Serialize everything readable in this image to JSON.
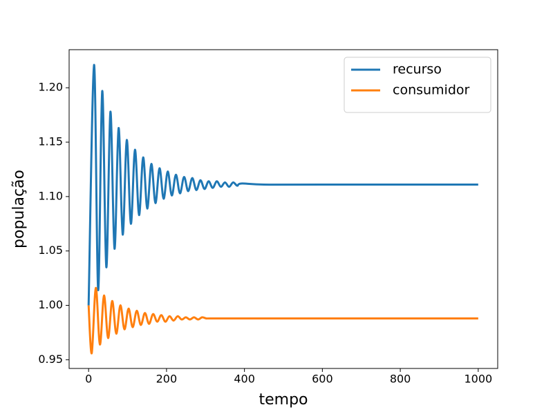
{
  "chart_data": {
    "type": "line",
    "xlabel": "tempo",
    "ylabel": "população",
    "xlim": [
      -50,
      1050
    ],
    "ylim": [
      0.942,
      1.235
    ],
    "xticks": [
      0,
      200,
      400,
      600,
      800,
      1000
    ],
    "yticks": [
      {
        "value": 0.95,
        "label": "0.95"
      },
      {
        "value": 1.0,
        "label": "1.00"
      },
      {
        "value": 1.05,
        "label": "1.05"
      },
      {
        "value": 1.1,
        "label": "1.10"
      },
      {
        "value": 1.15,
        "label": "1.15"
      },
      {
        "value": 1.2,
        "label": "1.20"
      }
    ],
    "grid": false,
    "legend": "upper right",
    "series": [
      {
        "name": "recurso",
        "color": "#1f77b4",
        "x": [
          0,
          14,
          24.5,
          35,
          45.5,
          56,
          66.5,
          77,
          87.5,
          98,
          108.5,
          119,
          129.5,
          140,
          150.5,
          161,
          171.5,
          182,
          192.5,
          203,
          213.5,
          224,
          234.5,
          245,
          255.5,
          266,
          276.5,
          287,
          297.5,
          308,
          318.5,
          329,
          339.5,
          350,
          360.5,
          371,
          381.5,
          392,
          450,
          600,
          1000
        ],
        "values": [
          1.0,
          1.221,
          1.014,
          1.197,
          1.035,
          1.178,
          1.052,
          1.163,
          1.065,
          1.152,
          1.075,
          1.143,
          1.083,
          1.136,
          1.089,
          1.13,
          1.094,
          1.126,
          1.098,
          1.123,
          1.101,
          1.12,
          1.103,
          1.118,
          1.105,
          1.117,
          1.106,
          1.115,
          1.107,
          1.114,
          1.108,
          1.114,
          1.109,
          1.113,
          1.109,
          1.113,
          1.11,
          1.112,
          1.111,
          1.111,
          1.111
        ]
      },
      {
        "name": "consumidor",
        "color": "#ff7f0e",
        "x": [
          0,
          8,
          18.5,
          29,
          39.5,
          50,
          60.5,
          71,
          81.5,
          92,
          102.5,
          113,
          123.5,
          134,
          144.5,
          155,
          165.5,
          176,
          186.5,
          197,
          207.5,
          218,
          228.5,
          239,
          249.5,
          260,
          270.5,
          281,
          291.5,
          302,
          312.5,
          400,
          600,
          1000
        ],
        "values": [
          1.0,
          0.956,
          1.016,
          0.964,
          1.009,
          0.97,
          1.004,
          0.974,
          1.0,
          0.978,
          0.997,
          0.98,
          0.995,
          0.982,
          0.993,
          0.983,
          0.992,
          0.985,
          0.991,
          0.985,
          0.99,
          0.986,
          0.99,
          0.987,
          0.989,
          0.987,
          0.989,
          0.987,
          0.989,
          0.988,
          0.988,
          0.988,
          0.988,
          0.988
        ]
      }
    ]
  }
}
